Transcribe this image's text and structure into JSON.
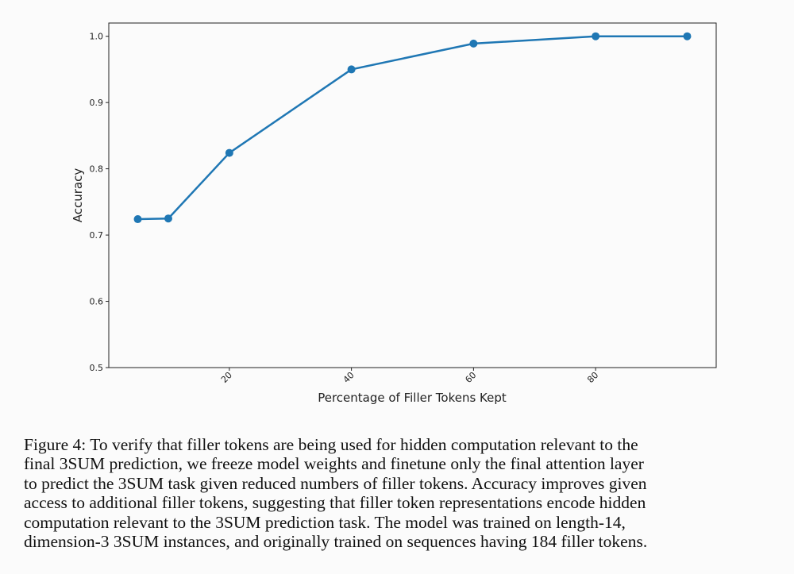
{
  "chart_data": {
    "type": "line",
    "x_label": "Percentage of Filler Tokens Kept",
    "y_label": "Accuracy",
    "x": [
      5,
      10,
      20,
      40,
      60,
      80,
      95
    ],
    "series": [
      {
        "color": "#1f77b4",
        "values": [
          0.724,
          0.725,
          0.824,
          0.95,
          0.989,
          1.0,
          1.0
        ]
      }
    ],
    "xlim": [
      0.25,
      99.75
    ],
    "ylim": [
      0.5,
      1.02
    ],
    "xticks": [
      20,
      40,
      60,
      80
    ],
    "yticks": [
      {
        "value": 0.5,
        "label": "0.5"
      },
      {
        "value": 0.6,
        "label": "0.6"
      },
      {
        "value": 0.7,
        "label": "0.7"
      },
      {
        "value": 0.8,
        "label": "0.8"
      },
      {
        "value": 0.9,
        "label": "0.9"
      },
      {
        "value": 1.0,
        "label": "1.0"
      }
    ]
  },
  "caption": {
    "lines": [
      "Figure 4: To verify that filler tokens are being used for hidden computation relevant to the",
      "final 3SUM prediction, we freeze model weights and finetune only the final attention layer",
      "to predict the 3SUM task given reduced numbers of filler tokens. Accuracy improves given",
      "access to additional filler tokens, suggesting that filler token representations encode hidden",
      "computation relevant to the 3SUM prediction task. The model was trained on length-14,",
      "dimension-3 3SUM instances, and originally trained on sequences having 184 filler tokens."
    ]
  }
}
